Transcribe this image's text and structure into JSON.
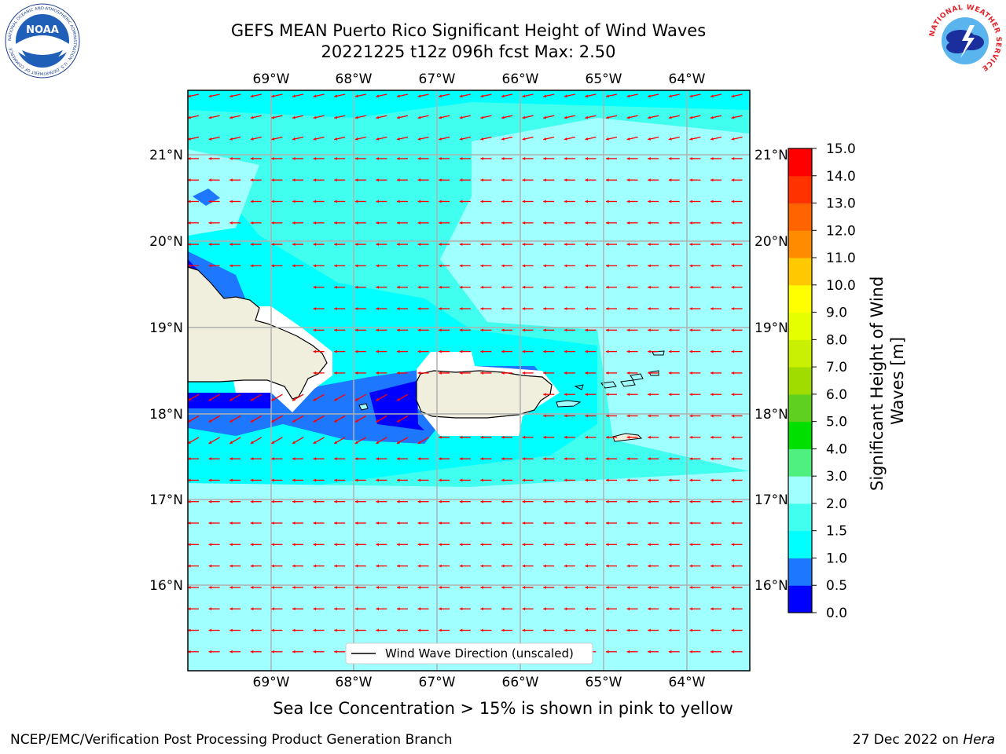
{
  "header": {
    "title_line1": "GEFS MEAN Puerto Rico Significant Height of Wind Waves",
    "title_line2": "20221225 t12z 096h fcst   Max: 2.50"
  },
  "logos": {
    "left_text": "NOAA",
    "left_ring": "NATIONAL OCEANIC AND ATMOSPHERIC ADMINISTRATION · U.S. DEPARTMENT OF COMMERCE",
    "right_ring": "NATIONAL WEATHER SERVICE"
  },
  "map": {
    "lon_labels": [
      "69°W",
      "68°W",
      "67°W",
      "66°W",
      "65°W",
      "64°W"
    ],
    "lat_labels": [
      "21°N",
      "20°N",
      "19°N",
      "18°N",
      "17°N",
      "16°N"
    ],
    "legend_label": "Wind Wave Direction (unscaled)",
    "colors": {
      "land": "#f0eedc",
      "coast": "#000000",
      "arrow": "#ff0000",
      "grid": "#b0b0b0"
    }
  },
  "colorbar": {
    "label_line1": "Significant Height of Wind",
    "label_line2": "Waves [m]",
    "ticks": [
      "0.0",
      "0.5",
      "1.0",
      "1.5",
      "2.0",
      "3.0",
      "4.0",
      "5.0",
      "6.0",
      "7.0",
      "8.0",
      "9.0",
      "10.0",
      "11.0",
      "12.0",
      "13.0",
      "14.0",
      "15.0"
    ],
    "colors": [
      "#0000ff",
      "#1e78ff",
      "#00ffff",
      "#40ffee",
      "#a0ffff",
      "#50f080",
      "#00e000",
      "#60d020",
      "#a0dc00",
      "#c8f000",
      "#e6ff00",
      "#ffff00",
      "#ffc800",
      "#ff8c00",
      "#ff6400",
      "#ff3200",
      "#ff0000"
    ]
  },
  "footer": {
    "sea_ice_note": "Sea Ice Concentration > 15% is shown in pink to yellow",
    "credit_left": "NCEP/EMC/Verification Post Processing Product Generation Branch",
    "credit_right_prefix": "27 Dec 2022 on ",
    "credit_right_host": "Hera"
  }
}
